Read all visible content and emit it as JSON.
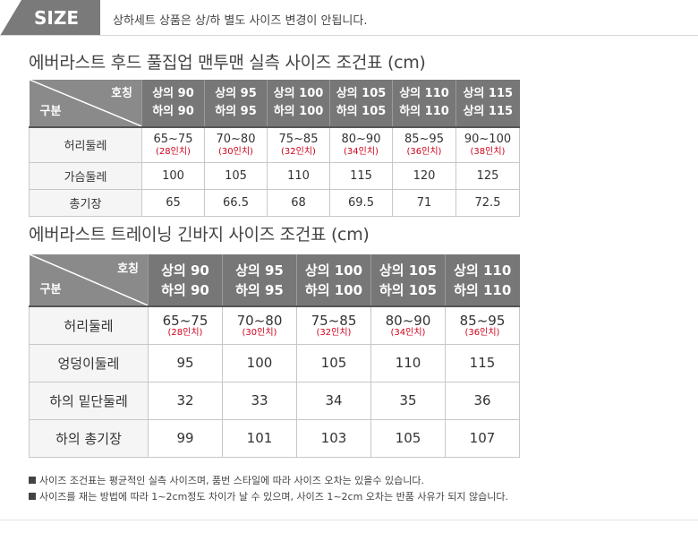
{
  "header": {
    "size_tag": "SIZE",
    "note": "상하세트 상품은 상/하 별도 사이즈 변경이 안됩니다."
  },
  "top_table": {
    "title": "에버라스트 후드 풀집업 맨투맨 실측 사이즈 조건표 (cm)",
    "corner_top": "호칭",
    "corner_bottom": "구분",
    "columns": [
      {
        "top": "상의 90",
        "bottom": "하의 90"
      },
      {
        "top": "상의 95",
        "bottom": "하의 95"
      },
      {
        "top": "상의 100",
        "bottom": "하의 100"
      },
      {
        "top": "상의 105",
        "bottom": "하의 105"
      },
      {
        "top": "상의 110",
        "bottom": "하의 110"
      },
      {
        "top": "상의 115",
        "bottom": "상의 115"
      }
    ],
    "waist": {
      "label": "허리둘레",
      "values": [
        "65~75",
        "70~80",
        "75~85",
        "80~90",
        "85~95",
        "90~100"
      ],
      "inches": [
        "(28인치)",
        "(30인치)",
        "(32인치)",
        "(34인치)",
        "(36인치)",
        "(38인치)"
      ]
    },
    "rows": [
      {
        "label": "가슴둘레",
        "values": [
          "100",
          "105",
          "110",
          "115",
          "120",
          "125"
        ]
      },
      {
        "label": "총기장",
        "values": [
          "65",
          "66.5",
          "68",
          "69.5",
          "71",
          "72.5"
        ]
      }
    ]
  },
  "bottom_table": {
    "title": "에버라스트 트레이닝 긴바지 사이즈 조건표 (cm)",
    "corner_top": "호칭",
    "corner_bottom": "구분",
    "columns": [
      {
        "top": "상의 90",
        "bottom": "하의 90"
      },
      {
        "top": "상의 95",
        "bottom": "하의 95"
      },
      {
        "top": "상의 100",
        "bottom": "하의 100"
      },
      {
        "top": "상의 105",
        "bottom": "하의 105"
      },
      {
        "top": "상의 110",
        "bottom": "하의 110"
      }
    ],
    "waist": {
      "label": "허리둘레",
      "values": [
        "65~75",
        "70~80",
        "75~85",
        "80~90",
        "85~95"
      ],
      "inches": [
        "(28인치)",
        "(30인치)",
        "(32인치)",
        "(34인치)",
        "(36인치)"
      ]
    },
    "rows": [
      {
        "label": "엉덩이둘레",
        "values": [
          "95",
          "100",
          "105",
          "110",
          "115"
        ]
      },
      {
        "label": "하의 밑단둘레",
        "values": [
          "32",
          "33",
          "34",
          "35",
          "36"
        ]
      },
      {
        "label": "하의 총기장",
        "values": [
          "99",
          "101",
          "103",
          "105",
          "107"
        ]
      }
    ]
  },
  "notes": [
    "사이즈 조건표는 평균적인 실측 사이즈며, 품번 스타일에 따라 사이즈 오차는 있을수 있습니다.",
    "사이즈를 재는 방법에 따라 1~2cm정도 차이가 날 수 있으며, 사이즈 1~2cm 오차는 반품 사유가 되지 않습니다."
  ]
}
